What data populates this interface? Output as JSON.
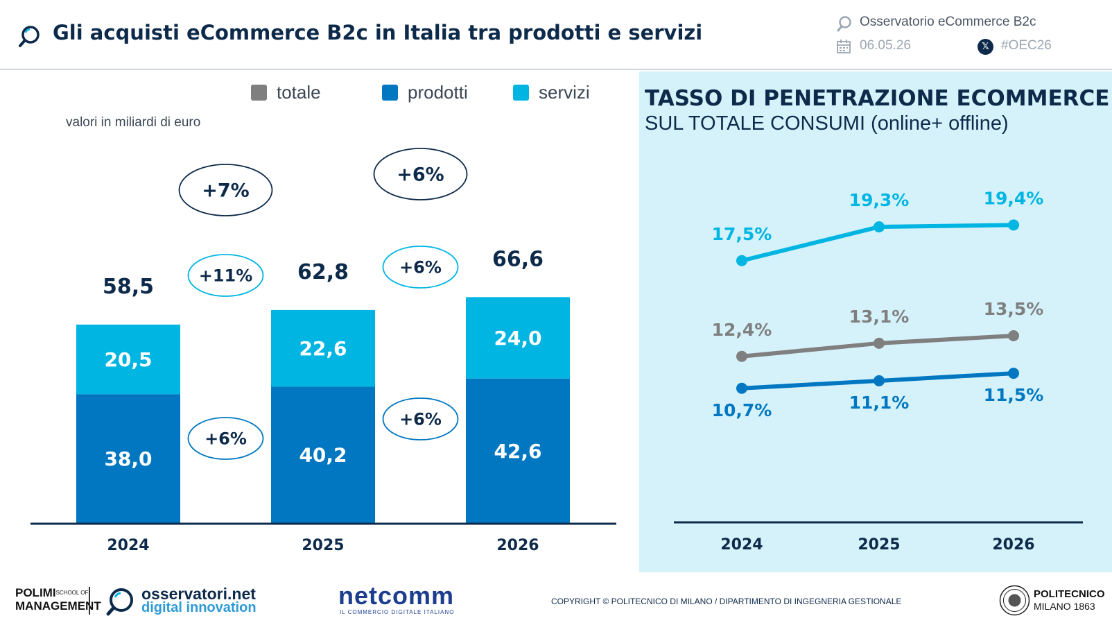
{
  "header": {
    "title": "Gli acquisti eCommerce B2c in Italia tra prodotti e servizi",
    "observatory": "Osservatorio eCommerce B2c",
    "date": "06.05.26",
    "hashtag": "#OEC26",
    "icons": [
      "search-icon",
      "calendar-icon",
      "x-icon"
    ]
  },
  "colors": {
    "totale": "#7f7f7f",
    "prodotti": "#0077c0",
    "servizi": "#00b5e2",
    "navy": "#0d2a4a",
    "panel": "#d5f2fb"
  },
  "legend": {
    "totale": "totale",
    "prodotti": "prodotti",
    "servizi": "servizi"
  },
  "unit_label": "valori in miliardi di euro",
  "right_panel": {
    "title": "TASSO DI PENETRAZIONE ECOMMERCE",
    "subtitle": "SUL TOTALE CONSUMI (online+ offline)"
  },
  "chart_data": [
    {
      "type": "bar",
      "stacked": true,
      "categories": [
        "2024",
        "2025",
        "2026"
      ],
      "series": [
        {
          "name": "prodotti",
          "values": [
            38.0,
            40.2,
            42.6
          ],
          "labels": [
            "38,0",
            "40,2",
            "42,6"
          ]
        },
        {
          "name": "servizi",
          "values": [
            20.5,
            22.6,
            24.0
          ],
          "labels": [
            "20,5",
            "22,6",
            "24,0"
          ]
        }
      ],
      "totals": {
        "name": "totale",
        "values": [
          58.5,
          62.8,
          66.6
        ],
        "labels": [
          "58,5",
          "62,8",
          "66,6"
        ]
      },
      "growth": {
        "totale": [
          "+7%",
          "+6%"
        ],
        "servizi": [
          "+11%",
          "+6%"
        ],
        "prodotti": [
          "+6%",
          "+6%"
        ]
      },
      "ylim": [
        0,
        70
      ]
    },
    {
      "type": "line",
      "title": "TASSO DI PENETRAZIONE ECOMMERCE",
      "subtitle": "SUL TOTALE CONSUMI (online+ offline)",
      "x": [
        "2024",
        "2025",
        "2026"
      ],
      "series": [
        {
          "name": "servizi",
          "values": [
            17.5,
            19.3,
            19.4
          ],
          "labels": [
            "17,5%",
            "19,3%",
            "19,4%"
          ]
        },
        {
          "name": "totale",
          "values": [
            12.4,
            13.1,
            13.5
          ],
          "labels": [
            "12,4%",
            "13,1%",
            "13,5%"
          ]
        },
        {
          "name": "prodotti",
          "values": [
            10.7,
            11.1,
            11.5
          ],
          "labels": [
            "10,7%",
            "11,1%",
            "11,5%"
          ]
        }
      ]
    }
  ],
  "footer": {
    "polimi_line1": "POLIMI",
    "polimi_small1": "SCHOOL OF",
    "polimi_line2": "MANAGEMENT",
    "osservatori_line1": "osservatori.net",
    "osservatori_line2": "digital innovation",
    "netcomm": "netcomm",
    "netcomm_sub": "IL COMMERCIO DIGITALE ITALIANO",
    "copyright": "COPYRIGHT © POLITECNICO DI MILANO / DIPARTIMENTO DI INGEGNERIA GESTIONALE",
    "politecnico_line1": "POLITECNICO",
    "politecnico_line2": "MILANO 1863"
  }
}
